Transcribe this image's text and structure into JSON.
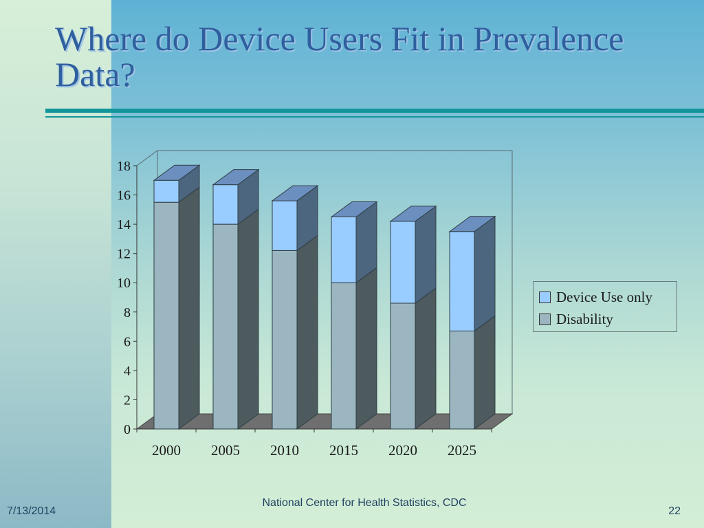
{
  "slide": {
    "title": "Where do Device Users Fit in Prevalence Data?",
    "footer_date": "7/13/2014",
    "footer_source": "National Center for Health Statistics, CDC",
    "page_number": "22"
  },
  "colors": {
    "device_use_only": "#99ccff",
    "disability": "#9bb6c0",
    "title": "#2f5f9e",
    "rule": "#12959a"
  },
  "chart_data": {
    "type": "bar",
    "stacked": true,
    "three_d": true,
    "categories": [
      "2000",
      "2005",
      "2010",
      "2015",
      "2020",
      "2025"
    ],
    "series": [
      {
        "name": "Disability",
        "values": [
          15.5,
          14.0,
          12.2,
          10.0,
          8.6,
          6.7
        ]
      },
      {
        "name": "Device Use only",
        "values": [
          1.5,
          2.7,
          3.4,
          4.5,
          5.6,
          6.8
        ]
      }
    ],
    "y_ticks": [
      "0",
      "2",
      "4",
      "6",
      "8",
      "10",
      "12",
      "14",
      "16",
      "18"
    ],
    "ylim": [
      0,
      18
    ],
    "title": "",
    "xlabel": "",
    "ylabel": "",
    "legend_position": "right",
    "legend": [
      "Device Use only",
      "Disability"
    ]
  }
}
